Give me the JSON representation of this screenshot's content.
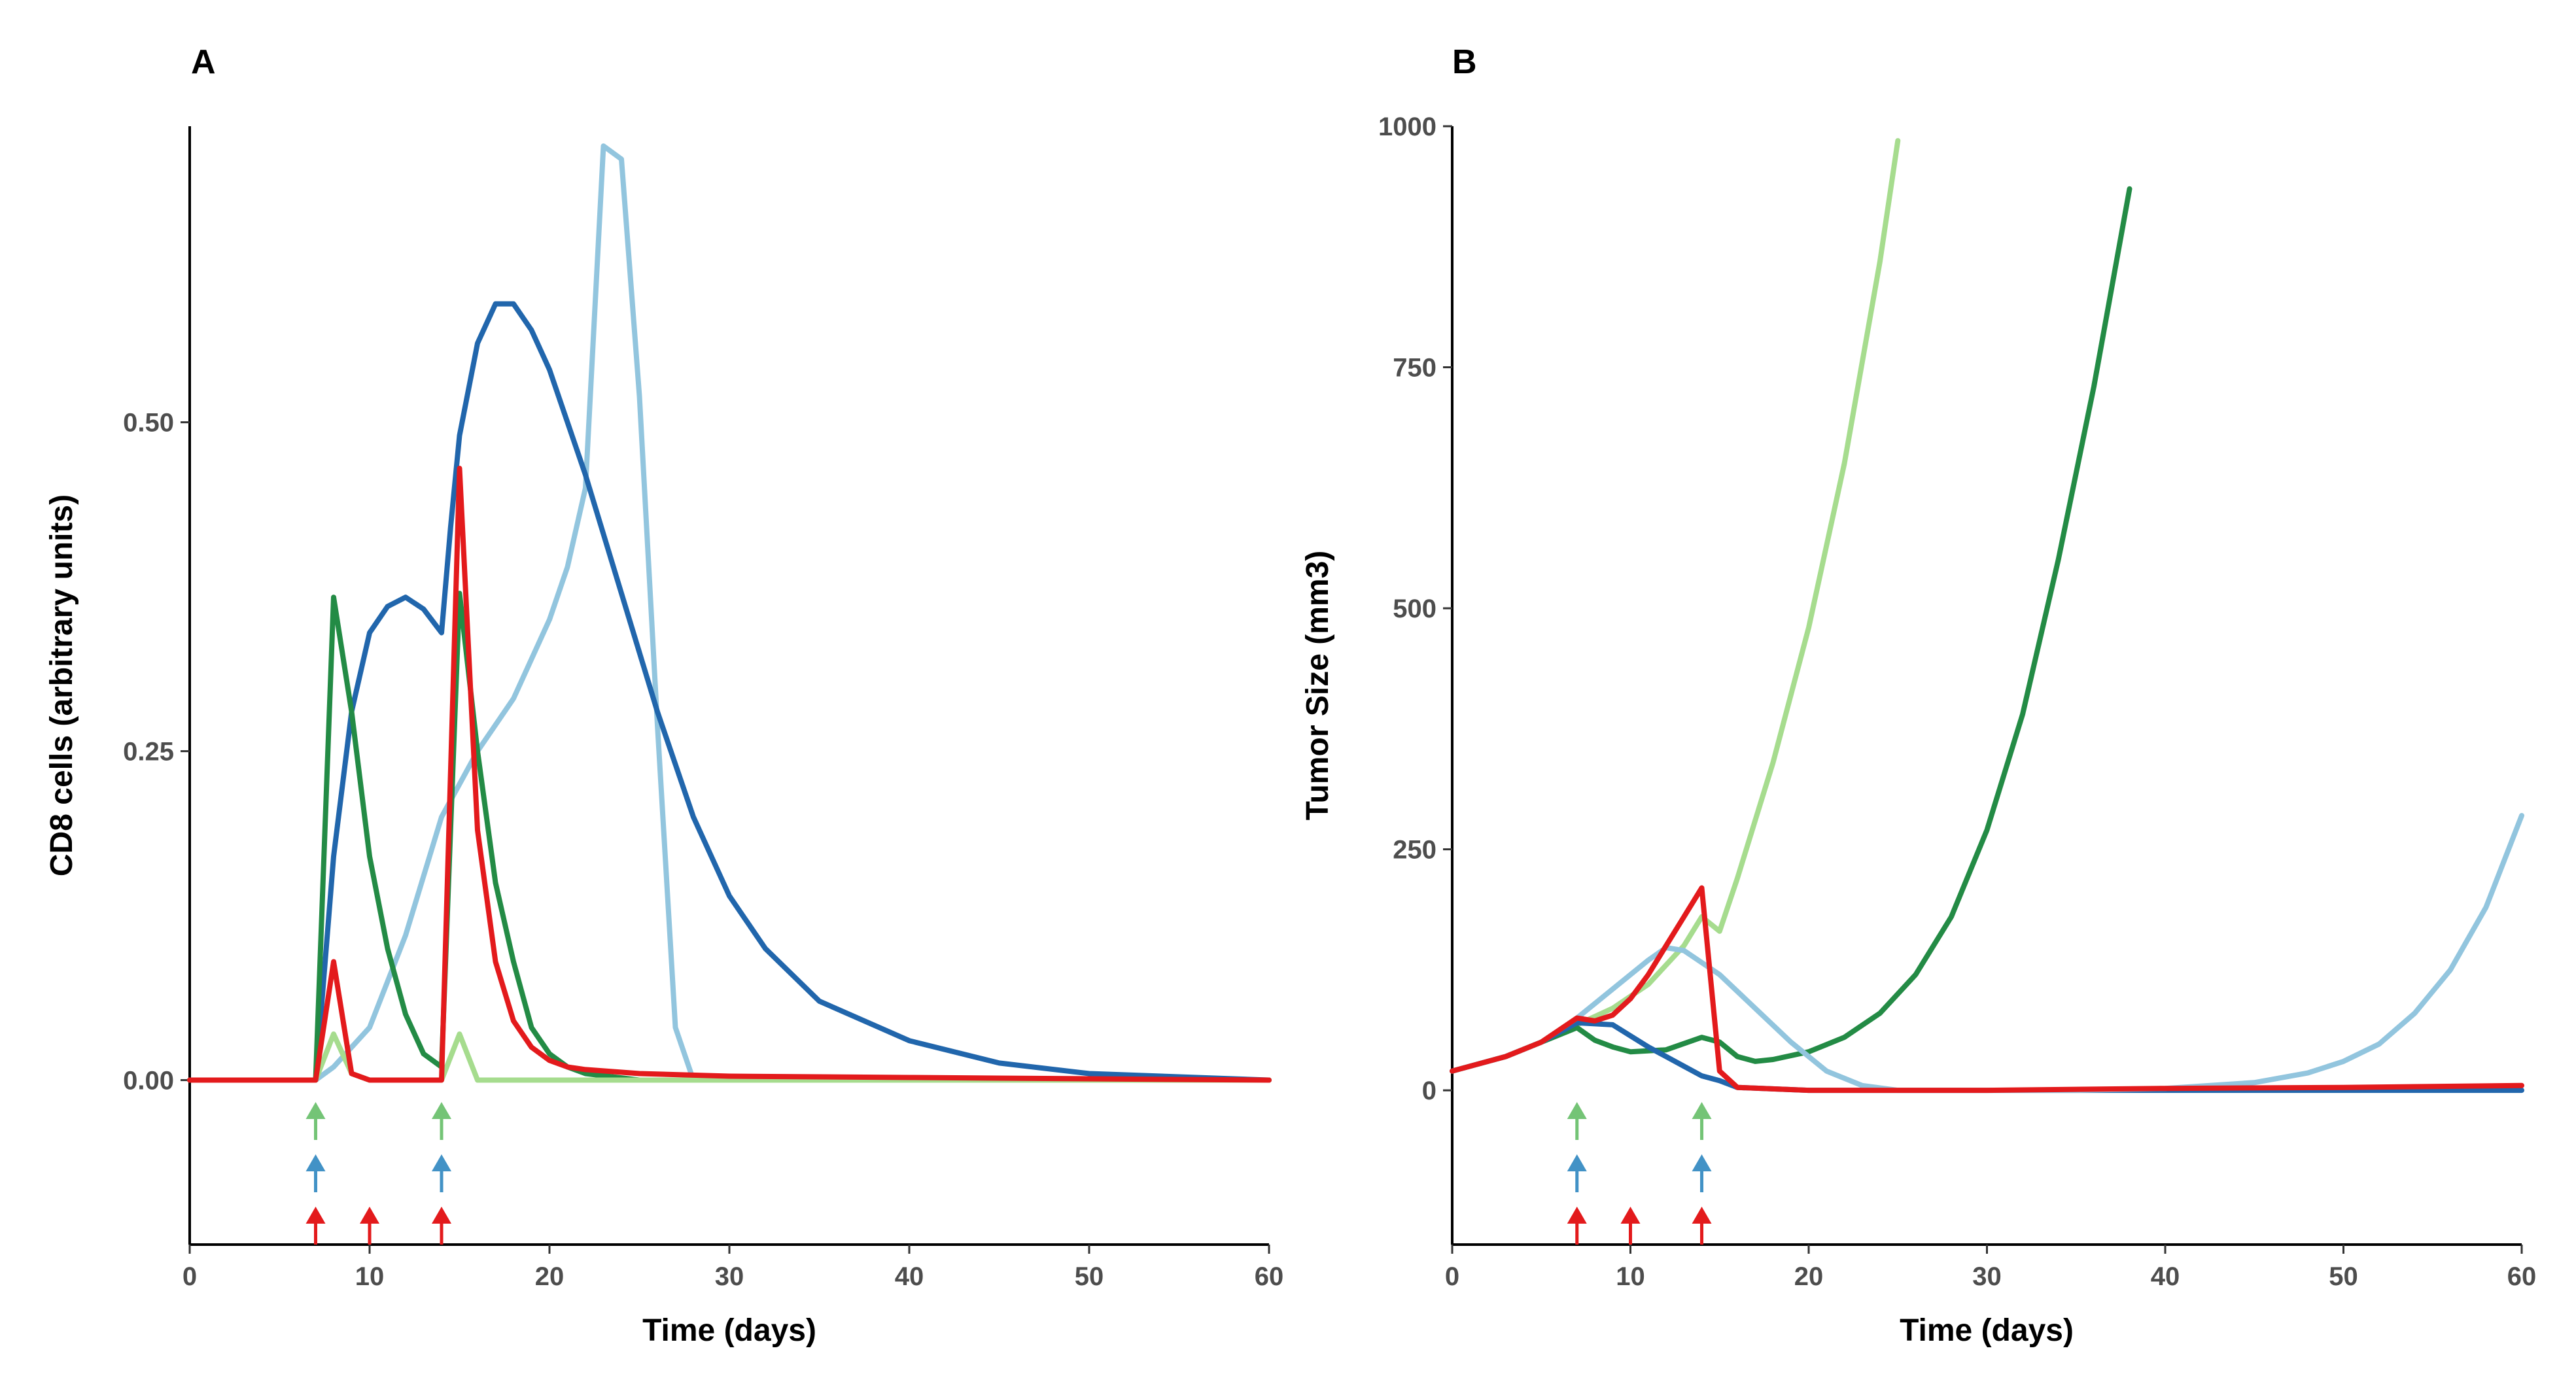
{
  "colors": {
    "light_green": "#a6dc8e",
    "dark_green": "#238b45",
    "dark_blue": "#2166ac",
    "light_blue": "#92c5de",
    "red": "#e31a1c",
    "arrow_green": "#74c476",
    "arrow_blue": "#4292c6",
    "arrow_red": "#e31a1c"
  },
  "chart_data": [
    {
      "panel_label": "A",
      "type": "line",
      "xlabel": "Time (days)",
      "ylabel": "CD8 cells (arbitrary units)",
      "xlim": [
        0,
        60
      ],
      "ylim": [
        -0.125,
        0.725
      ],
      "x_ticks": [
        0,
        10,
        20,
        30,
        40,
        50,
        60
      ],
      "x_tick_labels": [
        "0",
        "10",
        "20",
        "30",
        "40",
        "50",
        "60"
      ],
      "y_ticks": [
        0,
        0.25,
        0.5
      ],
      "y_tick_labels": [
        "0.00",
        "0.25",
        "0.50"
      ],
      "grid": false,
      "series": [
        {
          "color": "#92c5de",
          "x": [
            0,
            7,
            8,
            10,
            12,
            14,
            16,
            18,
            20,
            21,
            22,
            23,
            24,
            25,
            26,
            27,
            28,
            30,
            60
          ],
          "y": [
            0,
            0,
            0.01,
            0.04,
            0.11,
            0.2,
            0.25,
            0.29,
            0.35,
            0.39,
            0.45,
            0.71,
            0.7,
            0.52,
            0.27,
            0.04,
            0,
            0,
            0
          ]
        },
        {
          "color": "#2166ac",
          "x": [
            0,
            7,
            8,
            9,
            10,
            11,
            12,
            13,
            14,
            14.5,
            15,
            16,
            17,
            18,
            19,
            20,
            22,
            24,
            26,
            28,
            30,
            32,
            35,
            40,
            45,
            50,
            60
          ],
          "y": [
            0,
            0,
            0.17,
            0.28,
            0.34,
            0.36,
            0.367,
            0.358,
            0.34,
            0.42,
            0.49,
            0.56,
            0.59,
            0.59,
            0.57,
            0.54,
            0.46,
            0.37,
            0.28,
            0.2,
            0.14,
            0.1,
            0.06,
            0.03,
            0.013,
            0.005,
            0
          ]
        },
        {
          "color": "#238b45",
          "x": [
            0,
            7,
            8,
            9,
            10,
            11,
            12,
            13,
            14,
            15,
            16,
            17,
            18,
            19,
            20,
            21,
            22,
            25,
            30,
            60
          ],
          "y": [
            0,
            0,
            0.367,
            0.28,
            0.17,
            0.1,
            0.05,
            0.02,
            0.01,
            0.37,
            0.25,
            0.15,
            0.09,
            0.04,
            0.02,
            0.01,
            0.005,
            0,
            0,
            0
          ]
        },
        {
          "color": "#a6dc8e",
          "x": [
            0,
            7,
            8,
            9,
            10,
            14,
            15,
            16,
            20,
            60
          ],
          "y": [
            0,
            0,
            0.035,
            0.005,
            0,
            0,
            0.035,
            0,
            0,
            0
          ]
        },
        {
          "color": "#e31a1c",
          "x": [
            0,
            7,
            8,
            9,
            10,
            14,
            15,
            16,
            17,
            18,
            19,
            20,
            21,
            22,
            25,
            30,
            40,
            60
          ],
          "y": [
            0,
            0,
            0.09,
            0.005,
            0,
            0,
            0.465,
            0.19,
            0.09,
            0.045,
            0.025,
            0.015,
            0.01,
            0.008,
            0.005,
            0.003,
            0.002,
            0
          ]
        }
      ],
      "dose_arrows": [
        {
          "color": "#74c476",
          "days": [
            7,
            14
          ]
        },
        {
          "color": "#4292c6",
          "days": [
            7,
            14
          ]
        },
        {
          "color": "#e31a1c",
          "days": [
            7,
            10,
            14
          ]
        }
      ]
    },
    {
      "panel_label": "B",
      "type": "line",
      "xlabel": "Time (days)",
      "ylabel": "Tumor Size (mm3)",
      "xlim": [
        0,
        60
      ],
      "ylim": [
        -160,
        1000
      ],
      "x_ticks": [
        0,
        10,
        20,
        30,
        40,
        50,
        60
      ],
      "x_tick_labels": [
        "0",
        "10",
        "20",
        "30",
        "40",
        "50",
        "60"
      ],
      "y_ticks": [
        0,
        250,
        500,
        750,
        1000
      ],
      "y_tick_labels": [
        "0",
        "250",
        "500",
        "750",
        "1000"
      ],
      "grid": false,
      "series": [
        {
          "color": "#a6dc8e",
          "x": [
            0,
            3,
            5,
            7,
            9,
            11,
            13,
            14,
            15,
            16,
            18,
            20,
            22,
            24,
            25
          ],
          "y": [
            20,
            35,
            50,
            68,
            85,
            110,
            150,
            180,
            165,
            220,
            340,
            480,
            650,
            860,
            985
          ]
        },
        {
          "color": "#238b45",
          "x": [
            0,
            3,
            5,
            7,
            8,
            9,
            10,
            12,
            14,
            15,
            16,
            17,
            18,
            20,
            22,
            24,
            26,
            28,
            30,
            32,
            34,
            36,
            38
          ],
          "y": [
            20,
            35,
            50,
            65,
            52,
            45,
            40,
            42,
            55,
            50,
            35,
            30,
            32,
            40,
            55,
            80,
            120,
            180,
            270,
            390,
            550,
            730,
            935
          ]
        },
        {
          "color": "#2166ac",
          "x": [
            0,
            3,
            5,
            7,
            9,
            11,
            13,
            14,
            15,
            16,
            20,
            30,
            40,
            50,
            60
          ],
          "y": [
            20,
            35,
            50,
            70,
            68,
            45,
            25,
            15,
            10,
            3,
            0,
            0,
            0,
            0,
            0
          ]
        },
        {
          "color": "#92c5de",
          "x": [
            0,
            3,
            5,
            7,
            9,
            11,
            12,
            13,
            15,
            17,
            19,
            21,
            23,
            25,
            30,
            35,
            40,
            45,
            48,
            50,
            52,
            54,
            56,
            58,
            60
          ],
          "y": [
            20,
            35,
            50,
            75,
            105,
            135,
            148,
            145,
            120,
            85,
            50,
            20,
            5,
            0,
            0,
            0,
            2,
            8,
            18,
            30,
            48,
            80,
            125,
            190,
            285
          ]
        },
        {
          "color": "#e31a1c",
          "x": [
            0,
            3,
            5,
            7,
            8,
            9,
            10,
            11,
            12,
            13,
            14,
            15,
            16,
            20,
            30,
            40,
            50,
            60
          ],
          "y": [
            20,
            35,
            50,
            75,
            72,
            78,
            95,
            120,
            150,
            180,
            210,
            20,
            3,
            0,
            0,
            2,
            3,
            5
          ]
        }
      ],
      "dose_arrows": [
        {
          "color": "#74c476",
          "days": [
            7,
            14
          ]
        },
        {
          "color": "#4292c6",
          "days": [
            7,
            14
          ]
        },
        {
          "color": "#e31a1c",
          "days": [
            7,
            10,
            14
          ]
        }
      ]
    }
  ]
}
